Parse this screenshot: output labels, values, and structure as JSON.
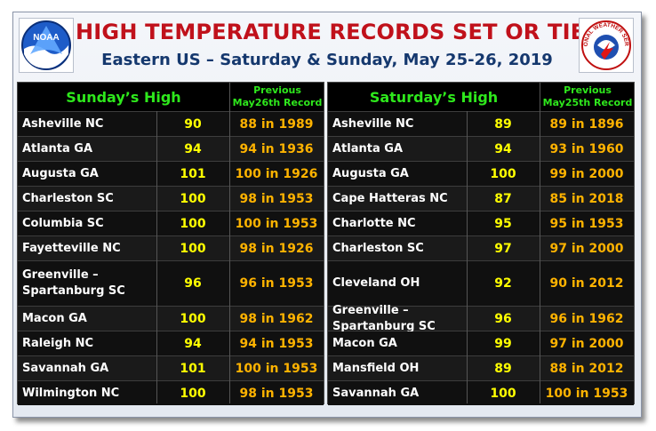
{
  "title": "HIGH TEMPERATURE RECORDS SET OR TIED",
  "subtitle": "Eastern US – Saturday & Sunday, May 25-26, 2019",
  "logos": {
    "left": "NOAA",
    "right": "NATIONAL WEATHER SERVICE"
  },
  "sunday": {
    "header": "Sunday’s High",
    "prev_line1": "Previous",
    "prev_line2": "May26th Record",
    "rows": [
      {
        "city": "Asheville NC",
        "high": "90",
        "record": "88 in 1989"
      },
      {
        "city": "Atlanta GA",
        "high": "94",
        "record": "94 in 1936"
      },
      {
        "city": "Augusta GA",
        "high": "101",
        "record": "100 in 1926"
      },
      {
        "city": "Charleston SC",
        "high": "100",
        "record": "98 in 1953"
      },
      {
        "city": "Columbia SC",
        "high": "100",
        "record": "100 in 1953"
      },
      {
        "city": "Fayetteville NC",
        "high": "100",
        "record": "98 in 1926"
      },
      {
        "city": "Greenville – Spartanburg SC",
        "high": "96",
        "record": "96 in 1953"
      },
      {
        "city": "Macon GA",
        "high": "100",
        "record": "98 in 1962"
      },
      {
        "city": "Raleigh NC",
        "high": "94",
        "record": "94 in 1953"
      },
      {
        "city": "Savannah GA",
        "high": "101",
        "record": "100 in 1953"
      },
      {
        "city": "Wilmington NC",
        "high": "100",
        "record": "98 in 1953"
      }
    ]
  },
  "saturday": {
    "header": "Saturday’s High",
    "prev_line1": "Previous",
    "prev_line2": "May25th Record",
    "rows": [
      {
        "city": "Asheville NC",
        "high": "89",
        "record": "89 in 1896"
      },
      {
        "city": "Atlanta GA",
        "high": "94",
        "record": "93 in 1960"
      },
      {
        "city": "Augusta GA",
        "high": "100",
        "record": "99 in 2000"
      },
      {
        "city": "Cape Hatteras NC",
        "high": "87",
        "record": "85 in 2018"
      },
      {
        "city": "Charlotte NC",
        "high": "95",
        "record": "95 in 1953"
      },
      {
        "city": "Charleston SC",
        "high": "97",
        "record": "97 in 2000"
      },
      {
        "city": "Cleveland OH",
        "high": "92",
        "record": "90 in 2012"
      },
      {
        "city": "Greenville – Spartanburg SC",
        "high": "96",
        "record": "96 in 1962"
      },
      {
        "city": "Macon GA",
        "high": "99",
        "record": "97 in 2000"
      },
      {
        "city": "Mansfield OH",
        "high": "89",
        "record": "88 in 2012"
      },
      {
        "city": "Savannah GA",
        "high": "100",
        "record": "100 in 1953"
      }
    ]
  }
}
